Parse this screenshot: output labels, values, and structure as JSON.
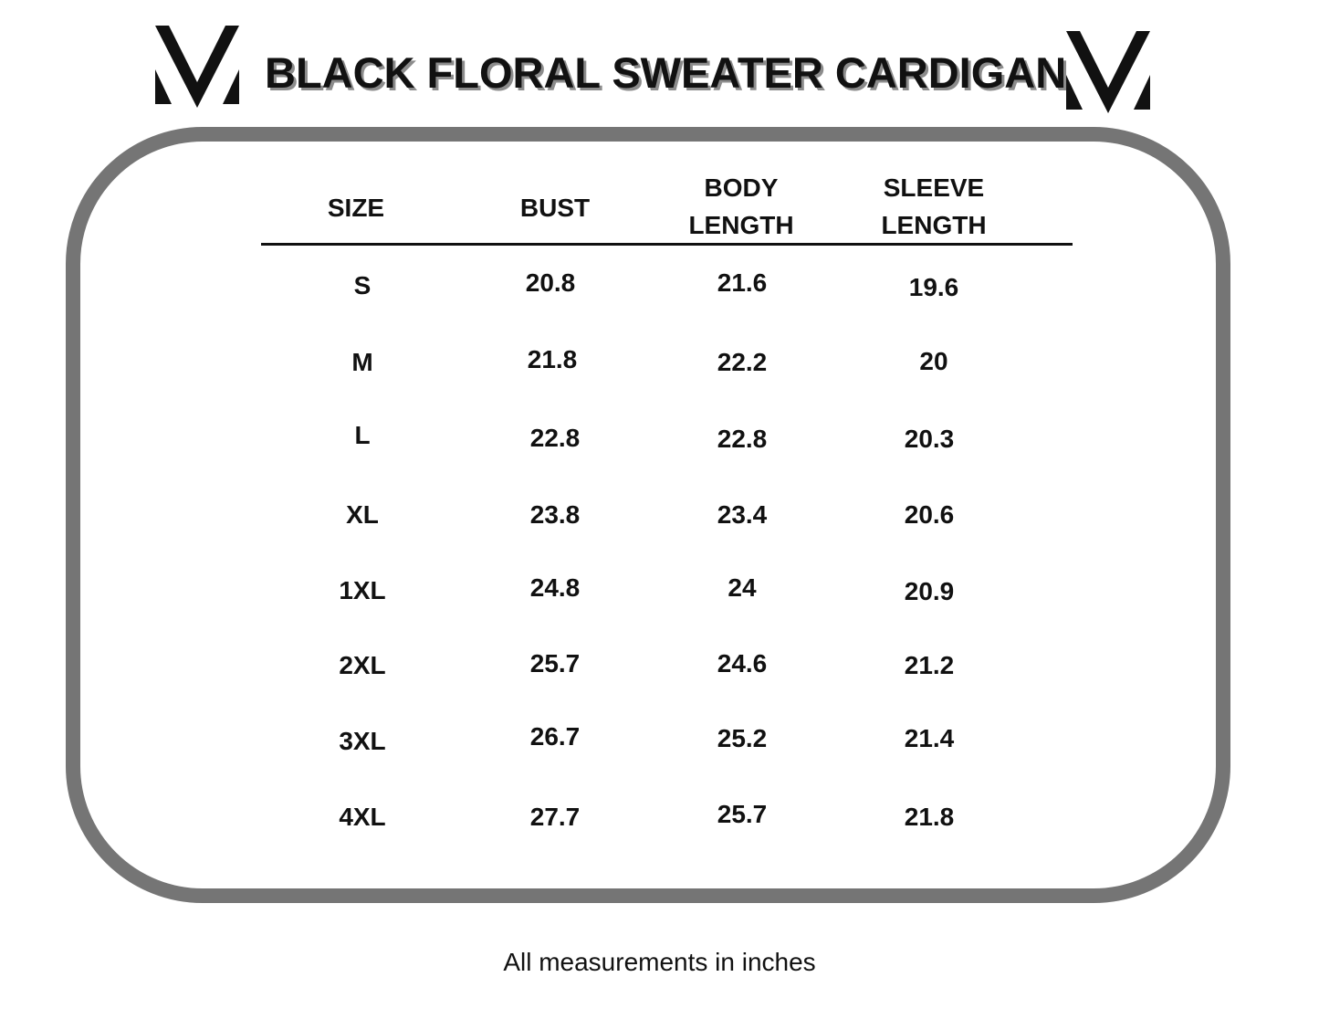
{
  "title": "BLACK FLORAL SWEATER CARDIGAN",
  "logo": {
    "icon": "v-monogram-logo"
  },
  "columns": [
    {
      "key": "size",
      "label": "SIZE"
    },
    {
      "key": "bust",
      "label": "BUST"
    },
    {
      "key": "body_length",
      "label": "BODY LENGTH"
    },
    {
      "key": "sleeve_length",
      "label": "SLEEVE LENGTH"
    }
  ],
  "rows": [
    {
      "size": "S",
      "bust": "20.8",
      "body_length": "21.6",
      "sleeve_length": "19.6"
    },
    {
      "size": "M",
      "bust": "21.8",
      "body_length": "22.2",
      "sleeve_length": "20"
    },
    {
      "size": "L",
      "bust": "22.8",
      "body_length": "22.8",
      "sleeve_length": "20.3"
    },
    {
      "size": "XL",
      "bust": "23.8",
      "body_length": "23.4",
      "sleeve_length": "20.6"
    },
    {
      "size": "1XL",
      "bust": "24.8",
      "body_length": "24",
      "sleeve_length": "20.9"
    },
    {
      "size": "2XL",
      "bust": "25.7",
      "body_length": "24.6",
      "sleeve_length": "21.2"
    },
    {
      "size": "3XL",
      "bust": "26.7",
      "body_length": "25.2",
      "sleeve_length": "21.4"
    },
    {
      "size": "4XL",
      "bust": "27.7",
      "body_length": "25.7",
      "sleeve_length": "21.8"
    }
  ],
  "footer": "All measurements in inches",
  "colors": {
    "frame": "#757575",
    "text": "#111111",
    "title_shadow": "#8c8c8c"
  }
}
